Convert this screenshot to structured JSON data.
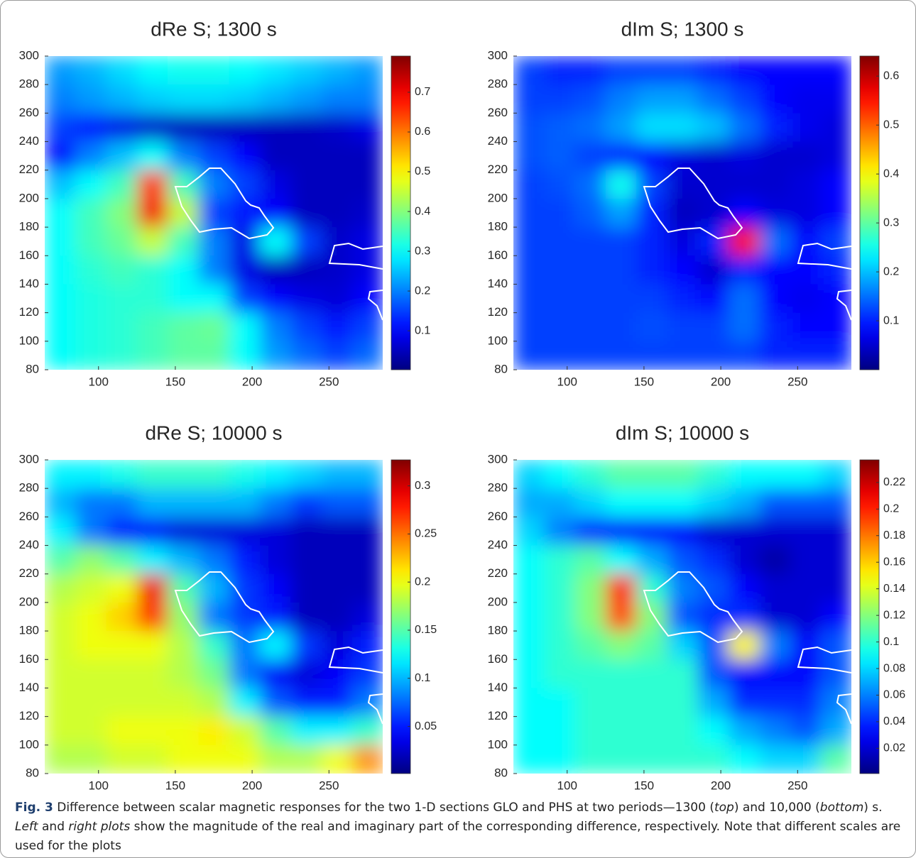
{
  "chart_data": [
    {
      "type": "heatmap",
      "title": "dRe S; 1300 s",
      "colormap": "jet",
      "x": [
        75,
        95,
        115,
        135,
        155,
        175,
        195,
        215,
        235,
        255,
        275
      ],
      "y": [
        290,
        270,
        250,
        230,
        210,
        190,
        170,
        150,
        130,
        110,
        90
      ],
      "z": [
        [
          0.22,
          0.24,
          0.27,
          0.3,
          0.31,
          0.31,
          0.3,
          0.28,
          0.26,
          0.24,
          0.22
        ],
        [
          0.2,
          0.22,
          0.24,
          0.26,
          0.27,
          0.27,
          0.26,
          0.24,
          0.22,
          0.2,
          0.2
        ],
        [
          0.15,
          0.12,
          0.08,
          0.06,
          0.05,
          0.05,
          0.05,
          0.05,
          0.05,
          0.06,
          0.08
        ],
        [
          0.1,
          0.2,
          0.25,
          0.3,
          0.2,
          0.15,
          0.1,
          0.05,
          0.05,
          0.05,
          0.05
        ],
        [
          0.25,
          0.3,
          0.35,
          0.65,
          0.35,
          0.2,
          0.15,
          0.08,
          0.05,
          0.05,
          0.05
        ],
        [
          0.3,
          0.35,
          0.4,
          0.7,
          0.45,
          0.15,
          0.12,
          0.1,
          0.05,
          0.05,
          0.06
        ],
        [
          0.3,
          0.35,
          0.38,
          0.45,
          0.35,
          0.2,
          0.08,
          0.3,
          0.15,
          0.06,
          0.08
        ],
        [
          0.3,
          0.33,
          0.35,
          0.33,
          0.3,
          0.2,
          0.08,
          0.05,
          0.05,
          0.06,
          0.08
        ],
        [
          0.3,
          0.32,
          0.33,
          0.33,
          0.3,
          0.3,
          0.15,
          0.1,
          0.08,
          0.07,
          0.1
        ],
        [
          0.3,
          0.32,
          0.33,
          0.35,
          0.37,
          0.38,
          0.3,
          0.2,
          0.15,
          0.12,
          0.15
        ],
        [
          0.3,
          0.32,
          0.33,
          0.35,
          0.37,
          0.37,
          0.3,
          0.22,
          0.18,
          0.15,
          0.18
        ]
      ],
      "xlim": [
        65,
        285
      ],
      "ylim": [
        80,
        300
      ],
      "xticks": [
        100,
        150,
        200,
        250
      ],
      "yticks": [
        80,
        100,
        120,
        140,
        160,
        180,
        200,
        220,
        240,
        260,
        280,
        300
      ],
      "clim": [
        0.002,
        0.791
      ],
      "cticks": [
        0.1,
        0.2,
        0.3,
        0.4,
        0.5,
        0.6,
        0.7
      ]
    },
    {
      "type": "heatmap",
      "title": "dIm S; 1300 s",
      "colormap": "jet",
      "x": [
        75,
        95,
        115,
        135,
        155,
        175,
        195,
        215,
        235,
        255,
        275
      ],
      "y": [
        290,
        270,
        250,
        230,
        210,
        190,
        170,
        150,
        130,
        110,
        90
      ],
      "z": [
        [
          0.12,
          0.1,
          0.1,
          0.12,
          0.12,
          0.12,
          0.1,
          0.08,
          0.08,
          0.08,
          0.08
        ],
        [
          0.12,
          0.12,
          0.13,
          0.16,
          0.18,
          0.18,
          0.15,
          0.12,
          0.08,
          0.07,
          0.07
        ],
        [
          0.13,
          0.14,
          0.15,
          0.18,
          0.22,
          0.22,
          0.2,
          0.15,
          0.1,
          0.07,
          0.06
        ],
        [
          0.13,
          0.14,
          0.12,
          0.1,
          0.08,
          0.06,
          0.05,
          0.06,
          0.05,
          0.05,
          0.06
        ],
        [
          0.12,
          0.13,
          0.15,
          0.25,
          0.12,
          0.05,
          0.05,
          0.05,
          0.05,
          0.06,
          0.08
        ],
        [
          0.12,
          0.12,
          0.14,
          0.18,
          0.1,
          0.04,
          0.05,
          0.08,
          0.06,
          0.06,
          0.08
        ],
        [
          0.12,
          0.12,
          0.12,
          0.12,
          0.1,
          0.06,
          0.1,
          0.55,
          0.15,
          0.08,
          0.12
        ],
        [
          0.12,
          0.12,
          0.12,
          0.12,
          0.1,
          0.08,
          0.05,
          0.1,
          0.08,
          0.08,
          0.1
        ],
        [
          0.12,
          0.12,
          0.12,
          0.12,
          0.12,
          0.1,
          0.08,
          0.15,
          0.08,
          0.07,
          0.08
        ],
        [
          0.12,
          0.12,
          0.12,
          0.12,
          0.13,
          0.12,
          0.12,
          0.15,
          0.1,
          0.08,
          0.08
        ],
        [
          0.12,
          0.12,
          0.12,
          0.12,
          0.12,
          0.12,
          0.12,
          0.12,
          0.1,
          0.1,
          0.1
        ]
      ],
      "xlim": [
        65,
        285
      ],
      "ylim": [
        80,
        300
      ],
      "xticks": [
        100,
        150,
        200,
        250
      ],
      "yticks": [
        80,
        100,
        120,
        140,
        160,
        180,
        200,
        220,
        240,
        260,
        280,
        300
      ],
      "clim": [
        0,
        0.641
      ],
      "cticks": [
        0.1,
        0.2,
        0.3,
        0.4,
        0.5,
        0.6
      ]
    },
    {
      "type": "heatmap",
      "title": "dRe S; 10000 s",
      "colormap": "jet",
      "x": [
        75,
        95,
        115,
        135,
        155,
        175,
        195,
        215,
        235,
        255,
        275
      ],
      "y": [
        290,
        270,
        250,
        230,
        210,
        190,
        170,
        150,
        130,
        110,
        90
      ],
      "z": [
        [
          0.12,
          0.12,
          0.13,
          0.14,
          0.14,
          0.14,
          0.13,
          0.12,
          0.11,
          0.1,
          0.1
        ],
        [
          0.1,
          0.08,
          0.08,
          0.1,
          0.1,
          0.1,
          0.1,
          0.08,
          0.06,
          0.07,
          0.07
        ],
        [
          0.12,
          0.08,
          0.05,
          0.04,
          0.03,
          0.03,
          0.03,
          0.03,
          0.02,
          0.02,
          0.02
        ],
        [
          0.15,
          0.17,
          0.15,
          0.12,
          0.1,
          0.08,
          0.05,
          0.03,
          0.02,
          0.02,
          0.02
        ],
        [
          0.18,
          0.19,
          0.2,
          0.29,
          0.15,
          0.1,
          0.06,
          0.04,
          0.02,
          0.02,
          0.02
        ],
        [
          0.19,
          0.2,
          0.22,
          0.27,
          0.17,
          0.08,
          0.06,
          0.05,
          0.02,
          0.02,
          0.03
        ],
        [
          0.19,
          0.2,
          0.2,
          0.2,
          0.18,
          0.14,
          0.08,
          0.12,
          0.06,
          0.03,
          0.05
        ],
        [
          0.19,
          0.19,
          0.19,
          0.19,
          0.18,
          0.16,
          0.08,
          0.04,
          0.03,
          0.04,
          0.06
        ],
        [
          0.19,
          0.19,
          0.19,
          0.19,
          0.19,
          0.18,
          0.12,
          0.07,
          0.05,
          0.05,
          0.08
        ],
        [
          0.19,
          0.19,
          0.2,
          0.2,
          0.2,
          0.21,
          0.19,
          0.15,
          0.12,
          0.12,
          0.14
        ],
        [
          0.18,
          0.18,
          0.19,
          0.19,
          0.2,
          0.2,
          0.2,
          0.18,
          0.18,
          0.2,
          0.24
        ]
      ],
      "xlim": [
        65,
        285
      ],
      "ylim": [
        80,
        300
      ],
      "xticks": [
        100,
        150,
        200,
        250
      ],
      "yticks": [
        80,
        100,
        120,
        140,
        160,
        180,
        200,
        220,
        240,
        260,
        280,
        300
      ],
      "clim": [
        0.001,
        0.327
      ],
      "cticks": [
        0.05,
        0.1,
        0.15,
        0.2,
        0.25,
        0.3
      ]
    },
    {
      "type": "heatmap",
      "title": "dIm S; 10000 s",
      "colormap": "jet",
      "x": [
        75,
        95,
        115,
        135,
        155,
        175,
        195,
        215,
        235,
        255,
        275
      ],
      "y": [
        290,
        270,
        250,
        230,
        210,
        190,
        170,
        150,
        130,
        110,
        90
      ],
      "z": [
        [
          0.08,
          0.09,
          0.1,
          0.11,
          0.11,
          0.11,
          0.1,
          0.09,
          0.09,
          0.09,
          0.08
        ],
        [
          0.07,
          0.07,
          0.08,
          0.09,
          0.09,
          0.09,
          0.08,
          0.07,
          0.05,
          0.05,
          0.05
        ],
        [
          0.08,
          0.06,
          0.04,
          0.03,
          0.03,
          0.03,
          0.02,
          0.02,
          0.02,
          0.02,
          0.02
        ],
        [
          0.09,
          0.1,
          0.11,
          0.09,
          0.07,
          0.05,
          0.04,
          0.02,
          0.01,
          0.02,
          0.02
        ],
        [
          0.09,
          0.1,
          0.12,
          0.2,
          0.1,
          0.06,
          0.05,
          0.03,
          0.02,
          0.02,
          0.02
        ],
        [
          0.09,
          0.1,
          0.12,
          0.19,
          0.12,
          0.05,
          0.04,
          0.04,
          0.02,
          0.02,
          0.03
        ],
        [
          0.09,
          0.1,
          0.11,
          0.12,
          0.11,
          0.08,
          0.05,
          0.15,
          0.06,
          0.03,
          0.05
        ],
        [
          0.09,
          0.1,
          0.1,
          0.1,
          0.1,
          0.1,
          0.05,
          0.03,
          0.03,
          0.03,
          0.05
        ],
        [
          0.09,
          0.09,
          0.1,
          0.1,
          0.1,
          0.1,
          0.07,
          0.04,
          0.04,
          0.04,
          0.06
        ],
        [
          0.09,
          0.09,
          0.1,
          0.1,
          0.1,
          0.1,
          0.09,
          0.07,
          0.06,
          0.05,
          0.07
        ],
        [
          0.09,
          0.09,
          0.1,
          0.1,
          0.1,
          0.1,
          0.1,
          0.09,
          0.08,
          0.08,
          0.11
        ]
      ],
      "xlim": [
        65,
        285
      ],
      "ylim": [
        80,
        300
      ],
      "xticks": [
        100,
        150,
        200,
        250
      ],
      "yticks": [
        80,
        100,
        120,
        140,
        160,
        180,
        200,
        220,
        240,
        260,
        280,
        300
      ],
      "clim": [
        0.001,
        0.237
      ],
      "cticks": [
        0.02,
        0.04,
        0.06,
        0.08,
        0.1,
        0.12,
        0.14,
        0.16,
        0.18,
        0.2,
        0.22
      ]
    }
  ],
  "caption": {
    "label": "Fig. 3",
    "parts": [
      " Difference between scalar magnetic responses for the two 1-D sections GLO and PHS at two periods—1300 (",
      "top",
      ") and 10,000 (",
      "bottom",
      ") s. ",
      "Left",
      " and ",
      "right plots",
      " show the magnitude of the real and imaginary part of the corresponding difference, respectively. Note that different scales are used for the plots"
    ]
  }
}
